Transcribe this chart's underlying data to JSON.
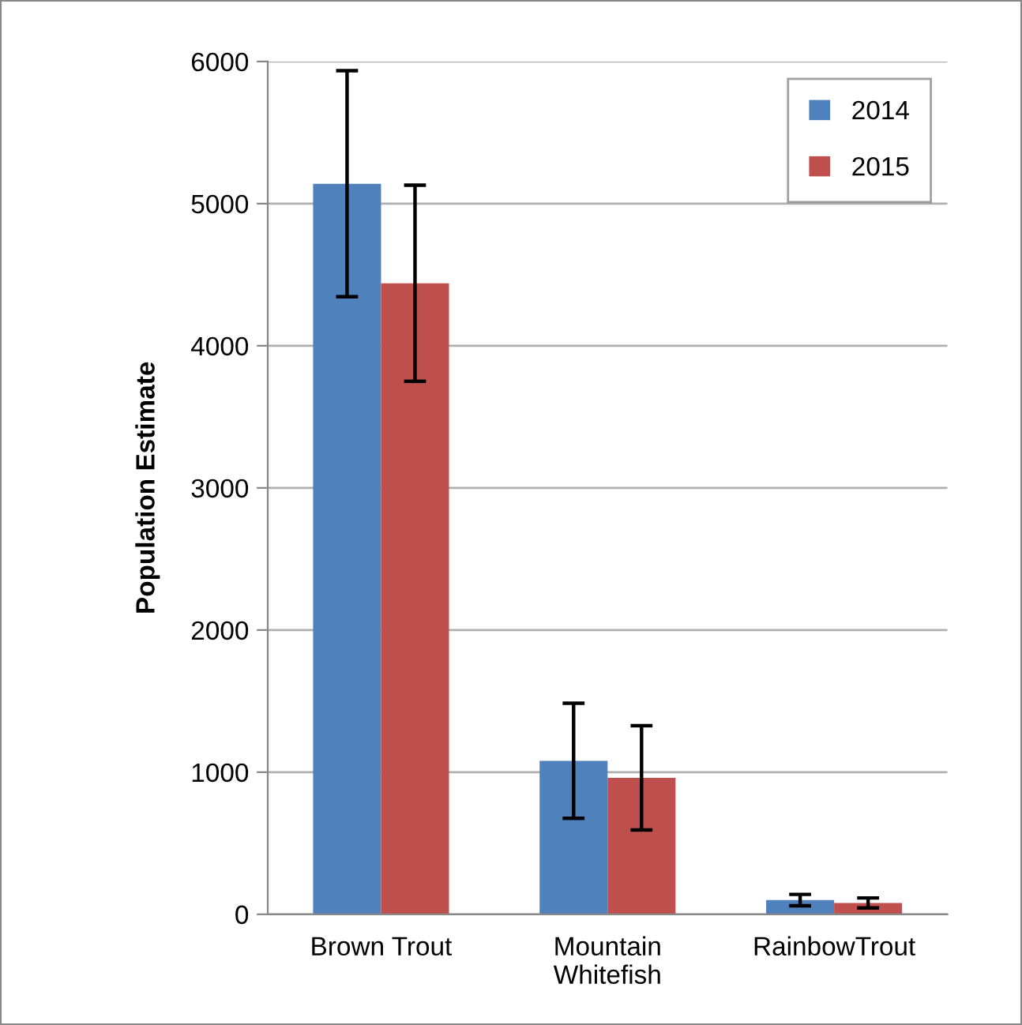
{
  "chart_data": {
    "type": "bar",
    "ylabel": "Population Estimate",
    "categories": [
      "Brown Trout",
      "Mountain\nWhitefish",
      "RainbowTrout"
    ],
    "series": [
      {
        "name": "2014",
        "color": "#4f81bd",
        "values": [
          5140,
          1080,
          100
        ],
        "errors": [
          795,
          405,
          40
        ]
      },
      {
        "name": "2015",
        "color": "#c0504d",
        "values": [
          4440,
          960,
          80
        ],
        "errors": [
          690,
          367,
          35
        ]
      }
    ],
    "ylim": [
      0,
      6000
    ],
    "yticks": [
      0,
      1000,
      2000,
      3000,
      4000,
      5000,
      6000
    ],
    "grid": "y",
    "legend": "top right"
  }
}
